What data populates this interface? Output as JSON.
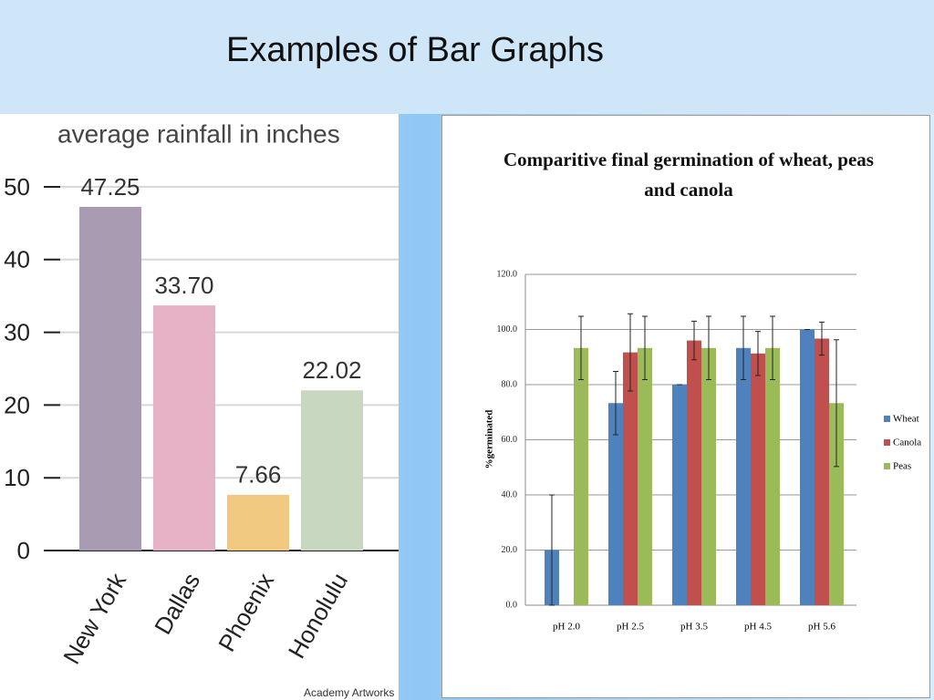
{
  "title": "Examples of Bar Graphs",
  "chart_data": [
    {
      "type": "bar",
      "title": "average rainfall in inches",
      "categories": [
        "New York",
        "Dallas",
        "Phoenix",
        "Honolulu"
      ],
      "values": [
        47.25,
        33.7,
        7.66,
        22.02
      ],
      "value_labels": [
        "47.25",
        "33.70",
        "7.66",
        "22.02"
      ],
      "colors": [
        "#a99bb2",
        "#e8b2c6",
        "#f0c87f",
        "#c8d8c0"
      ],
      "ylim": [
        0,
        50
      ],
      "yticks": [
        0,
        10,
        20,
        30,
        40,
        50
      ],
      "grid": true,
      "annotation": "Academy Artworks"
    },
    {
      "type": "grouped_bar",
      "title": "Comparitive final germination of wheat, peas and canola",
      "y_label": "%germinated",
      "categories": [
        "pH 2.0",
        "pH 2.5",
        "pH 3.5",
        "pH 4.5",
        "pH 5.6"
      ],
      "series": [
        {
          "name": "Wheat",
          "color": "#4f81bd",
          "values": [
            20,
            73.3,
            80,
            93.3,
            100
          ],
          "errors": [
            20,
            11.5,
            0,
            11.5,
            0
          ]
        },
        {
          "name": "Canola",
          "color": "#c0504d",
          "values": [
            null,
            91.7,
            96,
            91.3,
            96.7
          ],
          "errors": [
            null,
            14,
            7,
            8,
            6
          ]
        },
        {
          "name": "Peas",
          "color": "#9bbb59",
          "values": [
            93.3,
            93.3,
            93.3,
            93.3,
            73.3
          ],
          "errors": [
            11.5,
            11.5,
            11.5,
            11.5,
            23
          ]
        }
      ],
      "ylim": [
        0,
        120
      ],
      "yticks": [
        {
          "value": 0,
          "label": "0.0"
        },
        {
          "value": 20,
          "label": "20.0"
        },
        {
          "value": 40,
          "label": "40.0"
        },
        {
          "value": 60,
          "label": "60.0"
        },
        {
          "value": 80,
          "label": "80.0"
        },
        {
          "value": 100,
          "label": "100.0"
        },
        {
          "value": 120,
          "label": "120.0"
        }
      ],
      "grid": true,
      "legend": "right"
    }
  ]
}
